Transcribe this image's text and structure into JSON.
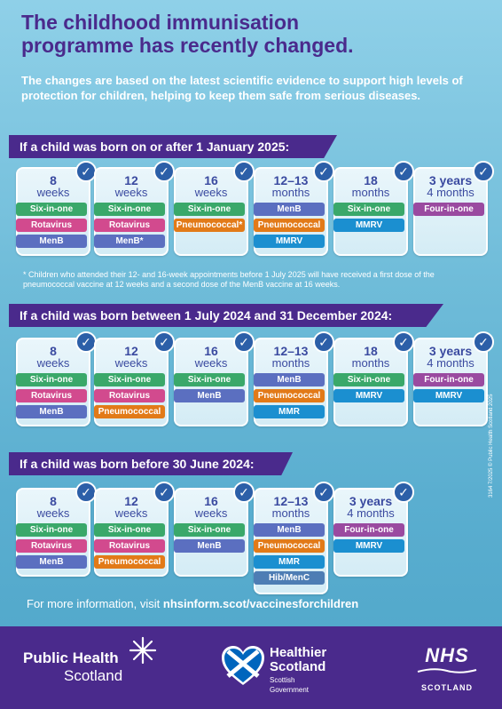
{
  "title_line1": "The childhood immunisation",
  "title_line2": "programme has recently changed.",
  "intro": "The changes are based on the latest scientific evidence to support high levels of protection for children, helping to keep them safe from serious diseases.",
  "sections": [
    {
      "heading": "If a child was born on or after 1 January 2025:",
      "cards": [
        {
          "num": "8",
          "unit": "weeks",
          "vaccines": [
            "Six-in-one",
            "Rotavirus",
            "MenB"
          ],
          "colors": [
            "six",
            "rota",
            "menb"
          ]
        },
        {
          "num": "12",
          "unit": "weeks",
          "vaccines": [
            "Six-in-one",
            "Rotavirus",
            "MenB*"
          ],
          "colors": [
            "six",
            "rota",
            "menb"
          ]
        },
        {
          "num": "16",
          "unit": "weeks",
          "vaccines": [
            "Six-in-one",
            "Pneumococcal*"
          ],
          "colors": [
            "six",
            "pneu"
          ]
        },
        {
          "num": "12–13",
          "unit": "months",
          "vaccines": [
            "MenB",
            "Pneumococcal",
            "MMRV"
          ],
          "colors": [
            "menb",
            "pneu",
            "mmrv"
          ]
        },
        {
          "num": "18",
          "unit": "months",
          "vaccines": [
            "Six-in-one",
            "MMRV"
          ],
          "colors": [
            "six",
            "mmrv"
          ]
        },
        {
          "num": "3 years",
          "unit": "4 months",
          "vaccines": [
            "Four-in-one"
          ],
          "colors": [
            "four"
          ]
        }
      ],
      "footnote": "* Children who attended their 12- and 16-week appointments before 1 July 2025 will have received a first dose of the pneumococcal vaccine at 12 weeks and a second dose of the MenB vaccine at 16 weeks."
    },
    {
      "heading": "If a child was born between 1 July 2024 and 31 December 2024:",
      "cards": [
        {
          "num": "8",
          "unit": "weeks",
          "vaccines": [
            "Six-in-one",
            "Rotavirus",
            "MenB"
          ],
          "colors": [
            "six",
            "rota",
            "menb"
          ]
        },
        {
          "num": "12",
          "unit": "weeks",
          "vaccines": [
            "Six-in-one",
            "Rotavirus",
            "Pneumococcal"
          ],
          "colors": [
            "six",
            "rota",
            "pneu"
          ]
        },
        {
          "num": "16",
          "unit": "weeks",
          "vaccines": [
            "Six-in-one",
            "MenB"
          ],
          "colors": [
            "six",
            "menb"
          ]
        },
        {
          "num": "12–13",
          "unit": "months",
          "vaccines": [
            "MenB",
            "Pneumococcal",
            "MMR"
          ],
          "colors": [
            "menb",
            "pneu",
            "mmr"
          ]
        },
        {
          "num": "18",
          "unit": "months",
          "vaccines": [
            "Six-in-one",
            "MMRV"
          ],
          "colors": [
            "six",
            "mmrv"
          ]
        },
        {
          "num": "3 years",
          "unit": "4 months",
          "vaccines": [
            "Four-in-one",
            "MMRV"
          ],
          "colors": [
            "four",
            "mmrv"
          ]
        }
      ]
    },
    {
      "heading": "If a child was born before 30 June 2024:",
      "cards": [
        {
          "num": "8",
          "unit": "weeks",
          "vaccines": [
            "Six-in-one",
            "Rotavirus",
            "MenB"
          ],
          "colors": [
            "six",
            "rota",
            "menb"
          ]
        },
        {
          "num": "12",
          "unit": "weeks",
          "vaccines": [
            "Six-in-one",
            "Rotavirus",
            "Pneumococcal"
          ],
          "colors": [
            "six",
            "rota",
            "pneu"
          ]
        },
        {
          "num": "16",
          "unit": "weeks",
          "vaccines": [
            "Six-in-one",
            "MenB"
          ],
          "colors": [
            "six",
            "menb"
          ]
        },
        {
          "num": "12–13",
          "unit": "months",
          "vaccines": [
            "MenB",
            "Pneumococcal",
            "MMR",
            "Hib/MenC"
          ],
          "colors": [
            "menb",
            "pneu",
            "mmr",
            "hib"
          ]
        },
        {
          "num": "3 years",
          "unit": "4 months",
          "vaccines": [
            "Four-in-one",
            "MMRV"
          ],
          "colors": [
            "four",
            "mmrv"
          ]
        }
      ]
    }
  ],
  "more_info_prefix": "For more information, visit ",
  "more_info_link": "nhsinform.scot/vaccinesforchildren",
  "footer": {
    "phs_line1": "Public Health",
    "phs_line2": "Scotland",
    "hs_line1": "Healthier",
    "hs_line2": "Scotland",
    "hs_line3": "Scottish",
    "hs_line4": "Government",
    "nhs_line1": "NHS",
    "nhs_line2": "SCOTLAND"
  },
  "side_text": "3164 7/2025 © Public Health Scotland 2025",
  "colors": {
    "brand_purple": "#4a2a8c",
    "six": "#3aa86a",
    "rota": "#d24a8e",
    "menb": "#5b6fc0",
    "pneu": "#e27a18",
    "mmrv": "#1b8fd0",
    "four": "#9a4aa0",
    "mmr": "#1b8fd0",
    "hib": "#4e7db4",
    "check": "#2c5fa8"
  }
}
